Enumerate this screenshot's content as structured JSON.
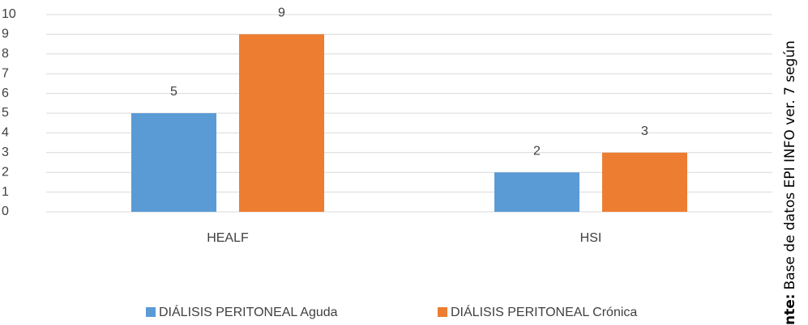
{
  "chart_data": {
    "type": "bar",
    "categories": [
      "HEALF",
      "HSI"
    ],
    "series": [
      {
        "name": "DIÁLISIS PERITONEAL Aguda",
        "color": "#5b9bd5",
        "values": [
          5,
          2
        ]
      },
      {
        "name": "DIÁLISIS PERITONEAL Crónica",
        "color": "#ed7d31",
        "values": [
          9,
          3
        ]
      }
    ],
    "ylim": [
      0,
      10
    ],
    "yticks": [
      0,
      1,
      2,
      3,
      4,
      5,
      6,
      7,
      8,
      9,
      10
    ],
    "grid": true,
    "legend": "bottom",
    "annotation": {
      "label": "nte:",
      "text": "Base de datos EPI INFO ver. 7 según"
    }
  }
}
